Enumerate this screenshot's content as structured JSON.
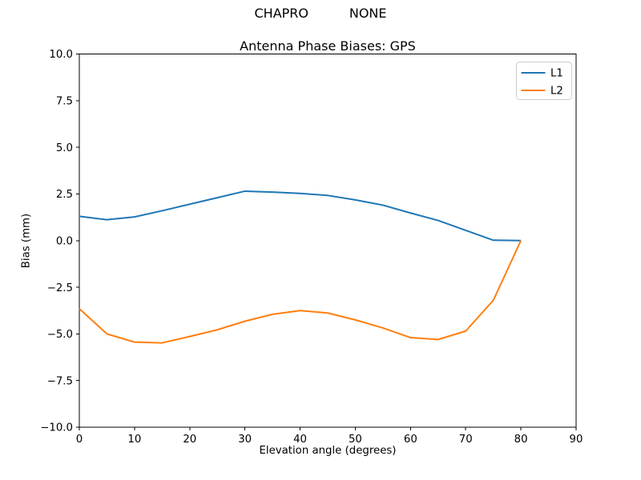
{
  "suptitle": "CHAPRO          NONE",
  "chart_data": {
    "type": "line",
    "title": "Antenna Phase Biases: GPS",
    "xlabel": "Elevation angle (degrees)",
    "ylabel": "Bias (mm)",
    "xlim": [
      0,
      90
    ],
    "ylim": [
      -10,
      10
    ],
    "grid": false,
    "legend_position": "upper right",
    "xticks": [
      0,
      10,
      20,
      30,
      40,
      50,
      60,
      70,
      80,
      90
    ],
    "xtick_labels": [
      "0",
      "10",
      "20",
      "30",
      "40",
      "50",
      "60",
      "70",
      "80",
      "90"
    ],
    "yticks": [
      10.0,
      7.5,
      5.0,
      2.5,
      0.0,
      -2.5,
      -5.0,
      -7.5,
      -10.0
    ],
    "ytick_labels": [
      "10.0",
      "7.5",
      "5.0",
      "2.5",
      "0.0",
      "−2.5",
      "−5.0",
      "−7.5",
      "−10.0"
    ],
    "x": [
      0,
      5,
      10,
      15,
      20,
      25,
      30,
      35,
      40,
      45,
      50,
      55,
      60,
      65,
      70,
      75,
      80
    ],
    "series": [
      {
        "name": "L1",
        "color": "#1f77b4",
        "values": [
          1.3,
          1.12,
          1.27,
          1.6,
          1.95,
          2.3,
          2.65,
          2.6,
          2.53,
          2.42,
          2.18,
          1.9,
          1.48,
          1.08,
          0.55,
          0.02,
          0.0
        ]
      },
      {
        "name": "L2",
        "color": "#ff7f0e",
        "values": [
          -3.65,
          -5.0,
          -5.44,
          -5.48,
          -5.14,
          -4.78,
          -4.32,
          -3.95,
          -3.75,
          -3.88,
          -4.25,
          -4.68,
          -5.2,
          -5.3,
          -4.85,
          -3.2,
          0.0
        ]
      }
    ]
  }
}
